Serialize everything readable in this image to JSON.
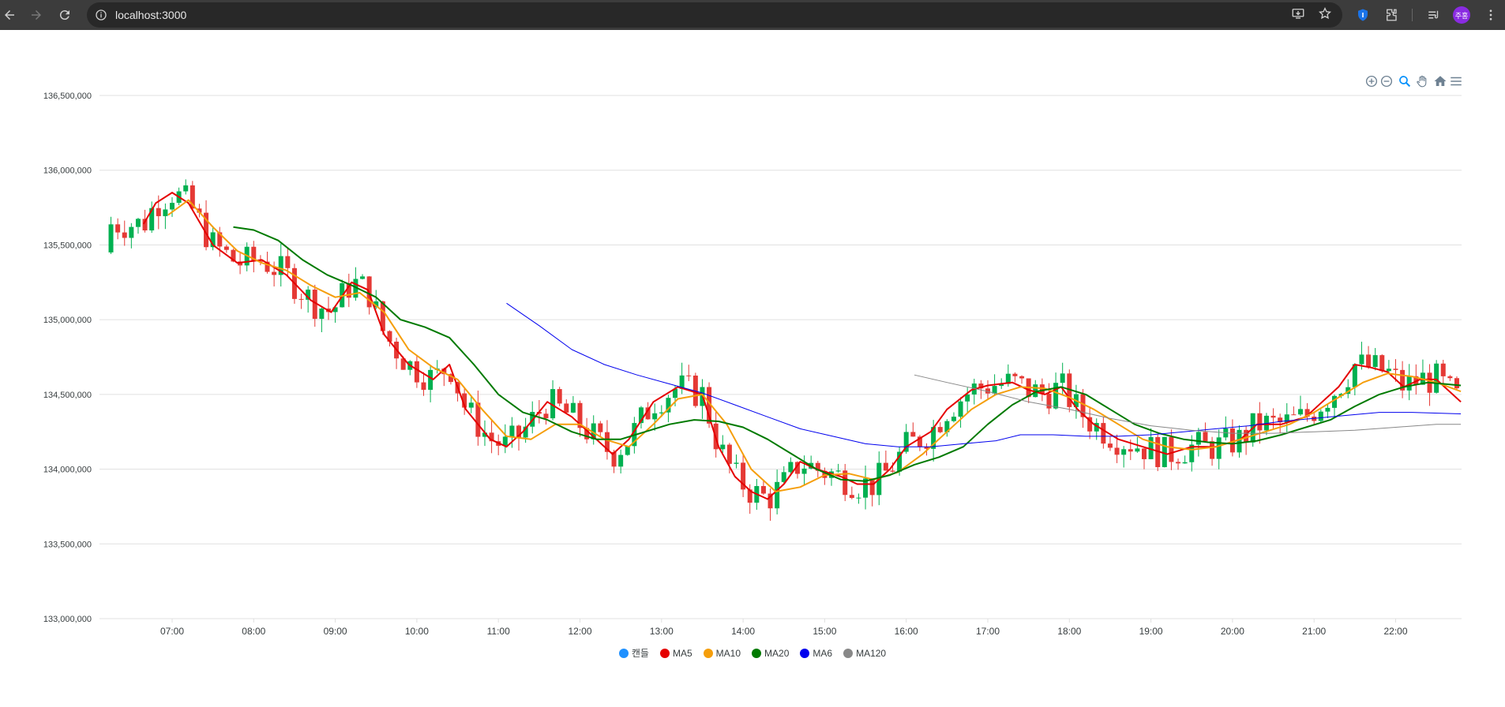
{
  "browser": {
    "url": "localhost:3000",
    "profile_initials": "주홍"
  },
  "colors": {
    "up": "#00b050",
    "down": "#e53935",
    "ma5": "#e50000",
    "ma10": "#f59e0b",
    "ma20": "#007a00",
    "ma6": "#0000ee",
    "ma120": "#888888",
    "candle_legend": "#1e90ff"
  },
  "toolbar": {
    "icons": [
      "zoom-in-icon",
      "zoom-out-icon",
      "selection-zoom-icon",
      "pan-icon",
      "reset-home-icon",
      "menu-icon"
    ]
  },
  "chart_data": {
    "type": "candlestick",
    "ylim": [
      133000000,
      136500000
    ],
    "y_ticks": [
      "133,000,000",
      "133,500,000",
      "134,000,000",
      "134,500,000",
      "135,000,000",
      "135,500,000",
      "136,000,000",
      "136,500,000"
    ],
    "x_ticks": [
      "07:00",
      "08:00",
      "09:00",
      "10:00",
      "11:00",
      "12:00",
      "13:00",
      "14:00",
      "15:00",
      "16:00",
      "17:00",
      "18:00",
      "19:00",
      "20:00",
      "21:00",
      "22:00"
    ],
    "legend": [
      "캔들",
      "MA5",
      "MA10",
      "MA20",
      "MA6",
      "MA120"
    ],
    "series": [
      {
        "name": "MA5",
        "color": "#e50000",
        "points": [
          [
            6.65,
            135640000
          ],
          [
            6.8,
            135780000
          ],
          [
            7.0,
            135850000
          ],
          [
            7.2,
            135780000
          ],
          [
            7.5,
            135500000
          ],
          [
            7.8,
            135380000
          ],
          [
            8.1,
            135400000
          ],
          [
            8.4,
            135300000
          ],
          [
            8.7,
            135130000
          ],
          [
            8.95,
            135050000
          ],
          [
            9.2,
            135250000
          ],
          [
            9.4,
            135200000
          ],
          [
            9.6,
            134900000
          ],
          [
            9.9,
            134700000
          ],
          [
            10.2,
            134600000
          ],
          [
            10.4,
            134700000
          ],
          [
            10.6,
            134400000
          ],
          [
            10.9,
            134200000
          ],
          [
            11.1,
            134150000
          ],
          [
            11.3,
            134250000
          ],
          [
            11.6,
            134450000
          ],
          [
            11.9,
            134350000
          ],
          [
            12.2,
            134200000
          ],
          [
            12.4,
            134100000
          ],
          [
            12.6,
            134200000
          ],
          [
            12.9,
            134450000
          ],
          [
            13.2,
            134550000
          ],
          [
            13.5,
            134500000
          ],
          [
            13.7,
            134150000
          ],
          [
            13.9,
            133950000
          ],
          [
            14.1,
            133850000
          ],
          [
            14.3,
            133800000
          ],
          [
            14.5,
            133900000
          ],
          [
            14.7,
            134050000
          ],
          [
            14.9,
            134000000
          ],
          [
            15.2,
            133950000
          ],
          [
            15.4,
            133900000
          ],
          [
            15.6,
            133900000
          ],
          [
            15.8,
            134000000
          ],
          [
            16.0,
            134150000
          ],
          [
            16.3,
            134250000
          ],
          [
            16.5,
            134400000
          ],
          [
            16.8,
            134530000
          ],
          [
            17.0,
            134560000
          ],
          [
            17.3,
            134580000
          ],
          [
            17.5,
            134530000
          ],
          [
            17.7,
            134500000
          ],
          [
            17.9,
            134550000
          ],
          [
            18.1,
            134400000
          ],
          [
            18.3,
            134300000
          ],
          [
            18.6,
            134200000
          ],
          [
            18.9,
            134150000
          ],
          [
            19.2,
            134100000
          ],
          [
            19.5,
            134150000
          ],
          [
            19.8,
            134150000
          ],
          [
            20.1,
            134200000
          ],
          [
            20.3,
            134300000
          ],
          [
            20.6,
            134300000
          ],
          [
            20.9,
            134350000
          ],
          [
            21.1,
            134450000
          ],
          [
            21.3,
            134550000
          ],
          [
            21.5,
            134700000
          ],
          [
            21.7,
            134680000
          ],
          [
            21.9,
            134650000
          ],
          [
            22.1,
            134550000
          ],
          [
            22.3,
            134600000
          ],
          [
            22.5,
            134600000
          ],
          [
            22.8,
            134450000
          ]
        ]
      },
      {
        "name": "MA10",
        "color": "#f59e0b",
        "points": [
          [
            6.95,
            135700000
          ],
          [
            7.2,
            135800000
          ],
          [
            7.5,
            135620000
          ],
          [
            7.8,
            135460000
          ],
          [
            8.1,
            135380000
          ],
          [
            8.4,
            135330000
          ],
          [
            8.7,
            135230000
          ],
          [
            9.0,
            135150000
          ],
          [
            9.3,
            135180000
          ],
          [
            9.6,
            135050000
          ],
          [
            9.9,
            134800000
          ],
          [
            10.2,
            134680000
          ],
          [
            10.5,
            134600000
          ],
          [
            10.8,
            134400000
          ],
          [
            11.1,
            134220000
          ],
          [
            11.4,
            134200000
          ],
          [
            11.7,
            134300000
          ],
          [
            12.0,
            134300000
          ],
          [
            12.3,
            134200000
          ],
          [
            12.6,
            134150000
          ],
          [
            12.9,
            134300000
          ],
          [
            13.2,
            134470000
          ],
          [
            13.5,
            134500000
          ],
          [
            13.8,
            134300000
          ],
          [
            14.1,
            134000000
          ],
          [
            14.4,
            133850000
          ],
          [
            14.7,
            133880000
          ],
          [
            15.0,
            133960000
          ],
          [
            15.3,
            133970000
          ],
          [
            15.6,
            133930000
          ],
          [
            15.9,
            133980000
          ],
          [
            16.2,
            134100000
          ],
          [
            16.5,
            134250000
          ],
          [
            16.8,
            134400000
          ],
          [
            17.1,
            134500000
          ],
          [
            17.4,
            134550000
          ],
          [
            17.7,
            134540000
          ],
          [
            18.0,
            134480000
          ],
          [
            18.3,
            134400000
          ],
          [
            18.6,
            134300000
          ],
          [
            18.9,
            134200000
          ],
          [
            19.2,
            134150000
          ],
          [
            19.5,
            134130000
          ],
          [
            19.8,
            134150000
          ],
          [
            20.1,
            134200000
          ],
          [
            20.4,
            134250000
          ],
          [
            20.7,
            134300000
          ],
          [
            21.0,
            134380000
          ],
          [
            21.3,
            134480000
          ],
          [
            21.6,
            134580000
          ],
          [
            21.9,
            134640000
          ],
          [
            22.2,
            134620000
          ],
          [
            22.5,
            134580000
          ],
          [
            22.8,
            134520000
          ]
        ]
      },
      {
        "name": "MA20",
        "color": "#007a00",
        "points": [
          [
            7.75,
            135620000
          ],
          [
            8.0,
            135600000
          ],
          [
            8.3,
            135530000
          ],
          [
            8.6,
            135400000
          ],
          [
            8.9,
            135300000
          ],
          [
            9.2,
            135230000
          ],
          [
            9.5,
            135150000
          ],
          [
            9.8,
            135000000
          ],
          [
            10.1,
            134950000
          ],
          [
            10.4,
            134880000
          ],
          [
            10.7,
            134700000
          ],
          [
            11.0,
            134500000
          ],
          [
            11.3,
            134380000
          ],
          [
            11.6,
            134330000
          ],
          [
            11.9,
            134250000
          ],
          [
            12.2,
            134200000
          ],
          [
            12.5,
            134200000
          ],
          [
            12.8,
            134250000
          ],
          [
            13.1,
            134300000
          ],
          [
            13.4,
            134330000
          ],
          [
            13.7,
            134320000
          ],
          [
            14.0,
            134280000
          ],
          [
            14.3,
            134200000
          ],
          [
            14.6,
            134100000
          ],
          [
            14.9,
            134000000
          ],
          [
            15.2,
            133930000
          ],
          [
            15.5,
            133920000
          ],
          [
            15.8,
            133960000
          ],
          [
            16.1,
            134030000
          ],
          [
            16.4,
            134080000
          ],
          [
            16.7,
            134150000
          ],
          [
            17.0,
            134300000
          ],
          [
            17.3,
            134430000
          ],
          [
            17.6,
            134520000
          ],
          [
            17.9,
            134550000
          ],
          [
            18.2,
            134500000
          ],
          [
            18.5,
            134400000
          ],
          [
            18.8,
            134300000
          ],
          [
            19.1,
            134240000
          ],
          [
            19.4,
            134200000
          ],
          [
            19.7,
            134180000
          ],
          [
            20.0,
            134170000
          ],
          [
            20.3,
            134190000
          ],
          [
            20.6,
            134230000
          ],
          [
            20.9,
            134280000
          ],
          [
            21.2,
            134330000
          ],
          [
            21.5,
            134420000
          ],
          [
            21.8,
            134500000
          ],
          [
            22.1,
            134550000
          ],
          [
            22.4,
            134580000
          ],
          [
            22.8,
            134560000
          ]
        ]
      },
      {
        "name": "MA6",
        "color": "#0000ee",
        "points": [
          [
            11.1,
            135110000
          ],
          [
            11.5,
            134960000
          ],
          [
            11.9,
            134800000
          ],
          [
            12.3,
            134700000
          ],
          [
            12.7,
            134630000
          ],
          [
            13.1,
            134570000
          ],
          [
            13.5,
            134510000
          ],
          [
            13.9,
            134430000
          ],
          [
            14.3,
            134350000
          ],
          [
            14.7,
            134270000
          ],
          [
            15.1,
            134220000
          ],
          [
            15.5,
            134170000
          ],
          [
            15.9,
            134150000
          ],
          [
            16.3,
            134150000
          ],
          [
            16.7,
            134170000
          ],
          [
            17.1,
            134190000
          ],
          [
            17.4,
            134230000
          ],
          [
            17.8,
            134230000
          ],
          [
            18.2,
            134220000
          ],
          [
            18.6,
            134220000
          ],
          [
            19.0,
            134230000
          ],
          [
            19.4,
            134250000
          ],
          [
            19.8,
            134270000
          ],
          [
            20.2,
            134290000
          ],
          [
            20.6,
            134320000
          ],
          [
            21.0,
            134340000
          ],
          [
            21.4,
            134360000
          ],
          [
            21.8,
            134380000
          ],
          [
            22.2,
            134380000
          ],
          [
            22.8,
            134370000
          ]
        ]
      },
      {
        "name": "MA120",
        "color": "#888888",
        "points": [
          [
            16.1,
            134630000
          ],
          [
            16.5,
            134580000
          ],
          [
            17.0,
            134520000
          ],
          [
            17.5,
            134450000
          ],
          [
            18.0,
            134400000
          ],
          [
            18.5,
            134340000
          ],
          [
            19.0,
            134290000
          ],
          [
            19.5,
            134260000
          ],
          [
            20.0,
            134240000
          ],
          [
            20.5,
            134240000
          ],
          [
            21.0,
            134250000
          ],
          [
            21.5,
            134260000
          ],
          [
            22.0,
            134280000
          ],
          [
            22.5,
            134300000
          ],
          [
            22.8,
            134300000
          ]
        ]
      }
    ]
  }
}
